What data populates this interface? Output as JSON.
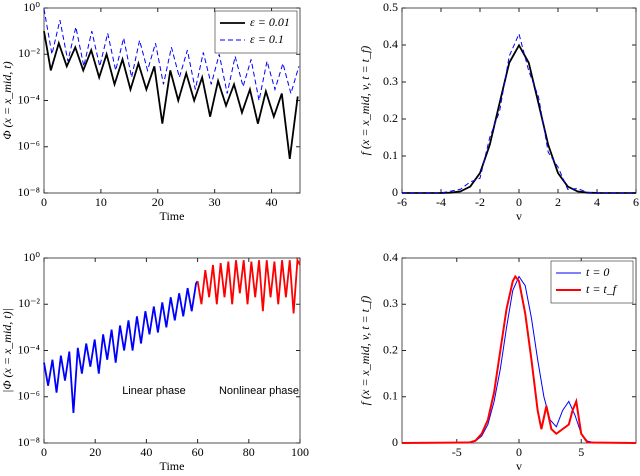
{
  "chart_data": [
    {
      "type": "line",
      "yscale": "log",
      "xlabel": "Time",
      "ylabel": "Φ (x = x_mid, t)",
      "xlim": [
        0,
        45
      ],
      "xticks": [
        0,
        10,
        20,
        30,
        40
      ],
      "ylim": [
        1e-08,
        1
      ],
      "yticks": [
        {
          "value": 1,
          "label": "10⁰"
        },
        {
          "value": 0.01,
          "label": "10⁻²"
        },
        {
          "value": 0.0001,
          "label": "10⁻⁴"
        },
        {
          "value": 1e-06,
          "label": "10⁻⁶"
        },
        {
          "value": 1e-08,
          "label": "10⁻⁸"
        }
      ],
      "legend": "upper right",
      "series": [
        {
          "name": "ε = 0.01",
          "color": "#000000",
          "dash": "solid",
          "width": 1.8,
          "x": [
            0,
            1.2,
            2.6,
            4,
            5.5,
            6.9,
            8.3,
            9.7,
            11,
            12.4,
            13.8,
            15.2,
            16.6,
            18,
            19.4,
            20.8,
            22.2,
            23.6,
            25,
            26.4,
            27.8,
            29.2,
            30.6,
            32,
            33.4,
            34.8,
            36.2,
            37.6,
            39,
            40.4,
            41.8,
            43.2,
            44.6
          ],
          "values": [
            0.1,
            0.002,
            0.03,
            0.003,
            0.02,
            0.002,
            0.015,
            0.001,
            0.01,
            0.0005,
            0.006,
            0.0003,
            0.004,
            0.0003,
            0.003,
            1e-05,
            0.002,
            0.0001,
            0.0015,
            0.0001,
            0.001,
            2e-05,
            0.0007,
            6e-05,
            0.0005,
            3e-05,
            0.0003,
            1e-05,
            0.00025,
            2e-05,
            0.0002,
            3e-07,
            0.00015
          ]
        },
        {
          "name": "ε = 0.1",
          "color": "#0000ff",
          "dash": "dashed",
          "width": 1,
          "x": [
            0,
            1.4,
            2.8,
            4.2,
            5.6,
            7,
            8.4,
            9.8,
            11.2,
            12.6,
            14,
            15.4,
            16.8,
            18.2,
            19.6,
            21,
            22.4,
            23.8,
            25.2,
            26.6,
            28,
            29.4,
            30.8,
            32.2,
            33.6,
            35,
            36.4,
            37.8,
            39.2,
            40.6,
            42,
            43.4,
            44.8
          ],
          "values": [
            0.9,
            0.01,
            0.3,
            0.005,
            0.15,
            0.003,
            0.1,
            0.003,
            0.08,
            0.002,
            0.05,
            0.001,
            0.04,
            0.002,
            0.03,
            0.0005,
            0.02,
            0.001,
            0.015,
            0.0003,
            0.012,
            0.0005,
            0.01,
            0.0002,
            0.008,
            0.0004,
            0.006,
            0.0001,
            0.005,
            0.0003,
            0.004,
            0.0002,
            0.003
          ]
        }
      ]
    },
    {
      "type": "line",
      "yscale": "linear",
      "xlabel": "v",
      "ylabel": "f (x = x_mid, v, t = t_f)",
      "xlim": [
        -6,
        6
      ],
      "xticks": [
        -6,
        -4,
        -2,
        0,
        2,
        4,
        6
      ],
      "ylim": [
        0,
        0.5
      ],
      "yticks": [
        0,
        0.1,
        0.2,
        0.3,
        0.4,
        0.5
      ],
      "series": [
        {
          "color": "#000000",
          "dash": "solid",
          "width": 1.8,
          "x": [
            -6,
            -4,
            -3.5,
            -3,
            -2.5,
            -2,
            -1.5,
            -1,
            -0.5,
            0,
            0.5,
            1,
            1.5,
            2,
            2.5,
            3,
            3.5,
            4,
            6
          ],
          "values": [
            0,
            0.0001,
            0.0009,
            0.0044,
            0.0175,
            0.054,
            0.13,
            0.242,
            0.352,
            0.399,
            0.352,
            0.242,
            0.13,
            0.054,
            0.0175,
            0.0044,
            0.0009,
            0.0001,
            0
          ]
        },
        {
          "color": "#0000ff",
          "dash": "dashed",
          "width": 1,
          "x": [
            -6,
            -4,
            -3.5,
            -3,
            -2.5,
            -2,
            -1.5,
            -1,
            -0.5,
            0,
            0.5,
            1,
            1.5,
            2,
            2.5,
            3,
            3.5,
            4,
            6
          ],
          "values": [
            0,
            0,
            0.005,
            0.01,
            0.03,
            0.04,
            0.15,
            0.22,
            0.37,
            0.43,
            0.33,
            0.26,
            0.11,
            0.07,
            0.01,
            0.012,
            0.002,
            0,
            0
          ]
        }
      ]
    },
    {
      "type": "line",
      "yscale": "log",
      "xlabel": "Time",
      "ylabel": "|Φ (x = x_mid, t)|",
      "xlim": [
        0,
        100
      ],
      "xticks": [
        0,
        20,
        40,
        60,
        80,
        100
      ],
      "ylim": [
        1e-08,
        1
      ],
      "yticks": [
        {
          "value": 1,
          "label": "10⁰"
        },
        {
          "value": 0.01,
          "label": "10⁻²"
        },
        {
          "value": 0.0001,
          "label": "10⁻⁴"
        },
        {
          "value": 1e-06,
          "label": "10⁻⁶"
        },
        {
          "value": 1e-08,
          "label": "10⁻⁸"
        }
      ],
      "annotations": [
        {
          "text": "Linear phase",
          "color": "#0000ff"
        },
        {
          "text": "Nonlinear phase",
          "color": "#ff0000"
        }
      ],
      "series": [
        {
          "color": "#0000ff",
          "dash": "solid",
          "width": 1.8,
          "x": [
            0,
            1.6,
            3.3,
            4.9,
            6.6,
            8.2,
            9.9,
            11.5,
            13.2,
            14.8,
            16.5,
            18.1,
            19.8,
            21.4,
            23.1,
            24.7,
            26.4,
            28,
            29.7,
            31.3,
            33,
            34.6,
            36.3,
            37.9,
            39.6,
            41.2,
            42.9,
            44.5,
            46.2,
            47.8,
            49.5,
            51.1,
            52.8,
            54.4,
            56.1,
            57.7,
            59.4,
            60
          ],
          "values": [
            3e-05,
            3e-06,
            4e-05,
            1.5e-06,
            6e-05,
            5e-06,
            9e-05,
            2e-07,
            0.00013,
            1e-05,
            0.0002,
            2e-05,
            0.0003,
            1e-05,
            0.0005,
            4e-05,
            0.0008,
            3e-05,
            0.0012,
            0.0001,
            0.002,
            0.0001,
            0.003,
            0.0002,
            0.005,
            0.0005,
            0.008,
            0.0006,
            0.012,
            0.001,
            0.02,
            0.002,
            0.03,
            0.003,
            0.05,
            0.005,
            0.08,
            0.1
          ]
        },
        {
          "color": "#ff0000",
          "dash": "solid",
          "width": 1.8,
          "x": [
            60,
            61.5,
            63,
            64.5,
            66,
            67.5,
            69,
            70.5,
            72,
            73.5,
            75,
            76.5,
            78,
            79.5,
            81,
            82.5,
            84,
            85.5,
            87,
            88.5,
            90,
            91.5,
            93,
            94.5,
            96,
            97.5,
            99,
            100
          ],
          "values": [
            0.1,
            0.01,
            0.3,
            0.02,
            0.5,
            0.01,
            0.6,
            0.02,
            0.7,
            0.01,
            0.8,
            0.03,
            0.8,
            0.01,
            0.7,
            0.02,
            0.8,
            0.005,
            0.8,
            0.02,
            0.7,
            0.01,
            0.8,
            0.02,
            0.8,
            0.004,
            0.8,
            0.5
          ]
        }
      ]
    },
    {
      "type": "line",
      "yscale": "linear",
      "xlabel": "v",
      "ylabel": "f (x = x_mid, v, t = t_f)",
      "xlim": [
        -9.4,
        9.4
      ],
      "xticks": [
        -5,
        0,
        5
      ],
      "ylim": [
        0,
        0.4
      ],
      "yticks": [
        0,
        0.1,
        0.2,
        0.3,
        0.4
      ],
      "legend": "upper right",
      "series": [
        {
          "name": "t = 0",
          "color": "#0000ff",
          "dash": "solid",
          "width": 1,
          "x": [
            -9.4,
            -4,
            -3.5,
            -3,
            -2.5,
            -2,
            -1.5,
            -1,
            -0.5,
            0,
            0.5,
            1,
            1.5,
            2,
            2.5,
            3,
            3.5,
            4,
            4.5,
            5,
            5.5,
            6,
            9.4
          ],
          "values": [
            0,
            0.001,
            0.004,
            0.015,
            0.04,
            0.09,
            0.16,
            0.25,
            0.33,
            0.36,
            0.34,
            0.27,
            0.18,
            0.1,
            0.05,
            0.035,
            0.07,
            0.09,
            0.06,
            0.02,
            0.004,
            0.001,
            0
          ]
        },
        {
          "name": "t = t_f",
          "color": "#ff0000",
          "dash": "solid",
          "width": 2,
          "x": [
            -9.4,
            -4,
            -3.5,
            -3,
            -2.5,
            -2,
            -1.5,
            -1,
            -0.5,
            -0.3,
            0,
            0.5,
            1,
            1.5,
            1.8,
            2.2,
            2.6,
            3,
            3.5,
            4,
            4.3,
            4.6,
            5,
            5.5,
            9.4
          ],
          "values": [
            0,
            0.001,
            0.005,
            0.02,
            0.05,
            0.11,
            0.2,
            0.29,
            0.35,
            0.36,
            0.35,
            0.28,
            0.18,
            0.07,
            0.03,
            0.08,
            0.03,
            0.02,
            0.03,
            0.04,
            0.07,
            0.09,
            0.02,
            0.001,
            0
          ]
        }
      ]
    }
  ]
}
